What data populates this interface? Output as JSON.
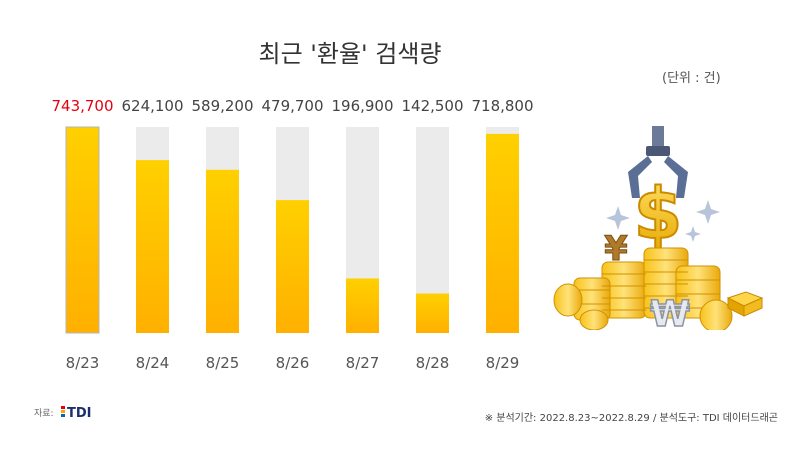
{
  "title": "최근 '환율' 검색량",
  "unit": "(단위 : 건)",
  "source_label": "자료:",
  "logo_text": "TDI",
  "footnote": "※ 분석기간: 2022.8.23~2022.8.29  / 분석도구: TDI 데이터드래곤",
  "colors": {
    "bar_top": "#FFD000",
    "bar_bottom": "#FFB000",
    "track": "#EBEBEB",
    "highlight_label": "#E60012",
    "label": "#444444",
    "category": "#555555"
  },
  "chart_data": {
    "type": "bar",
    "categories": [
      "8/23",
      "8/24",
      "8/25",
      "8/26",
      "8/27",
      "8/28",
      "8/29"
    ],
    "values": [
      743700,
      624100,
      589200,
      479700,
      196900,
      142500,
      718800
    ],
    "value_labels": [
      "743,700",
      "624,100",
      "589,200",
      "479,700",
      "196,900",
      "142,500",
      "718,800"
    ],
    "highlight_index": 0,
    "ylim": [
      0,
      800000
    ],
    "grid": false
  }
}
